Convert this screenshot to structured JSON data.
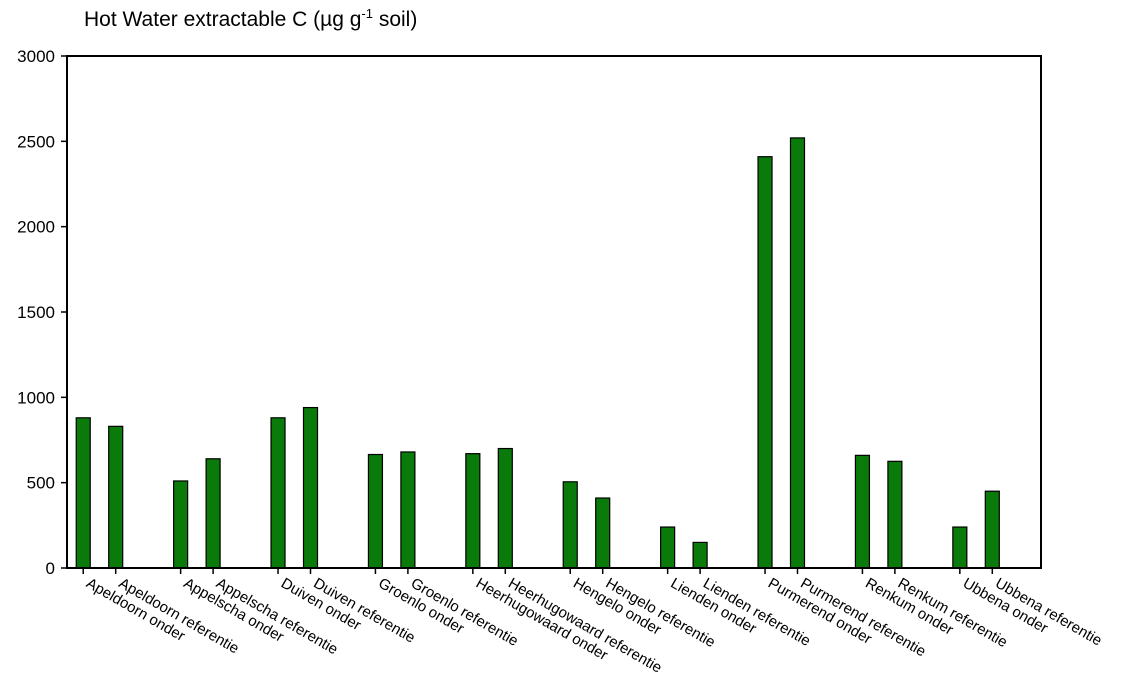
{
  "chart_data": {
    "type": "bar",
    "title": {
      "main": "Hot Water extractable  C (µg g",
      "sup": "-1",
      "end": " soil)"
    },
    "xlabel": "",
    "ylabel": "",
    "ylim": [
      0,
      3000
    ],
    "yticks": [
      0,
      500,
      1000,
      1500,
      2000,
      2500,
      3000
    ],
    "grid": false,
    "legend": "none",
    "bar_color": "#0a7a0a",
    "bar_edge": "#000000",
    "slots": 30,
    "categories": [
      "Apeldoorn onder",
      "Apeldoorn referentie",
      "Appelscha onder",
      "Appelscha referentie",
      "Duiven onder",
      "Duiven referentie",
      "Groenlo onder",
      "Groenlo referentie",
      "Heerhugowaard onder",
      "Heerhugowaard referentie",
      "Hengelo onder",
      "Hengelo referentie",
      "Lienden onder",
      "Lienden referentie",
      "Purmerend onder",
      "Purmerend referentie",
      "Renkum onder",
      "Renkum referentie",
      "Ubbena onder",
      "Ubbena referentie"
    ],
    "positions": [
      0,
      1,
      3,
      4,
      6,
      7,
      9,
      10,
      12,
      13,
      15,
      16,
      18,
      19,
      21,
      22,
      24,
      25,
      27,
      28
    ],
    "values": [
      880,
      830,
      510,
      640,
      880,
      940,
      665,
      680,
      670,
      700,
      505,
      410,
      240,
      150,
      2410,
      2520,
      660,
      625,
      240,
      450
    ]
  }
}
